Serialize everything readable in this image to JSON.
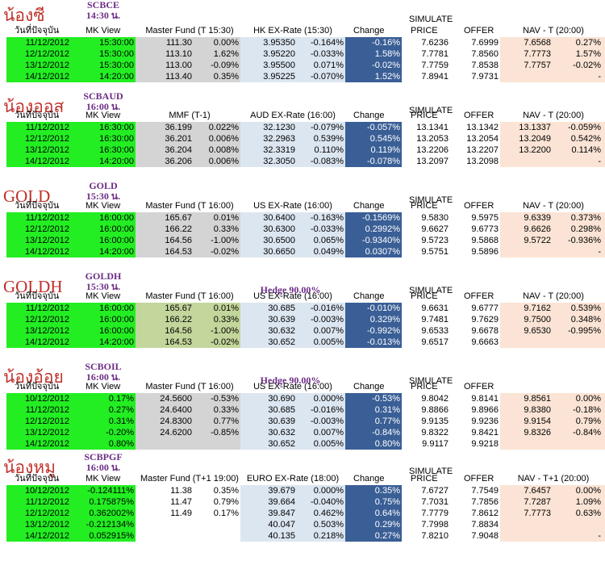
{
  "header_labels": {
    "date": "วันที่ปัจจุบัน",
    "mk": "MK View",
    "change": "Change",
    "price": "PRICE",
    "offer": "OFFER",
    "simulate": "SIMULATE"
  },
  "colors": {
    "green": "#22ee22",
    "grey": "#d4d4d4",
    "olive": "#c3d69b",
    "light_blue": "#dce6f1",
    "navy": "#3a5f96",
    "peach": "#fbe4d5",
    "nickname": "#c0302a",
    "code": "#6c2c86"
  },
  "sections": [
    {
      "nickname": "น้องซี",
      "code": "SCBCE",
      "time": "14:30 น.",
      "hedge": "",
      "master_header": "Master Fund (T 15:30)",
      "fx_header": "HK EX-Rate (15:30)",
      "nav_header": "NAV - T (20:00)",
      "master_bg": "#d4d4d4",
      "rows": [
        [
          "11/12/2012",
          "15:30:00",
          "111.30",
          "0.00%",
          "3.95350",
          "-0.164%",
          "-0.16%",
          "7.6236",
          "7.6999",
          "7.6568",
          "0.27%"
        ],
        [
          "12/12/2012",
          "15:30:00",
          "113.10",
          "1.62%",
          "3.95220",
          "-0.033%",
          "1.58%",
          "7.7781",
          "7.8560",
          "7.7773",
          "1.57%"
        ],
        [
          "13/12/2012",
          "15:30:00",
          "113.00",
          "-0.09%",
          "3.95500",
          "0.071%",
          "-0.02%",
          "7.7759",
          "7.8538",
          "7.7757",
          "-0.02%"
        ],
        [
          "14/12/2012",
          "14:20:00",
          "113.40",
          "0.35%",
          "3.95225",
          "-0.070%",
          "1.52%",
          "7.8941",
          "7.9731",
          "",
          "-"
        ]
      ]
    },
    {
      "nickname": "น้องออส",
      "code": "SCBAUD",
      "time": "16:00 น.",
      "hedge": "",
      "master_header": "MMF (T-1)",
      "fx_header": "AUD EX-Rate (16:00)",
      "nav_header": "NAV - T (20:00)",
      "master_bg": "#d4d4d4",
      "rows": [
        [
          "11/12/2012",
          "16:30:00",
          "36.199",
          "0.022%",
          "32.1230",
          "-0.079%",
          "-0.057%",
          "13.1341",
          "13.1342",
          "13.1337",
          "-0.059%"
        ],
        [
          "12/12/2012",
          "16:30:00",
          "36.201",
          "0.006%",
          "32.2963",
          "0.539%",
          "0.545%",
          "13.2053",
          "13.2054",
          "13.2049",
          "0.542%"
        ],
        [
          "13/12/2012",
          "16:30:00",
          "36.204",
          "0.008%",
          "32.3319",
          "0.110%",
          "0.119%",
          "13.2206",
          "13.2207",
          "13.2200",
          "0.114%"
        ],
        [
          "14/12/2012",
          "14:20:00",
          "36.206",
          "0.006%",
          "32.3050",
          "-0.083%",
          "-0.078%",
          "13.2097",
          "13.2098",
          "",
          "-"
        ]
      ]
    },
    {
      "nickname": "GOLD",
      "code": "GOLD",
      "time": "15:30 น.",
      "hedge": "",
      "master_header": "Master Fund (T 16:00)",
      "fx_header": "US EX-Rate (16:00)",
      "nav_header": "NAV - T (20:00)",
      "master_bg": "#d4d4d4",
      "rows": [
        [
          "11/12/2012",
          "16:00:00",
          "165.67",
          "0.01%",
          "30.6400",
          "-0.163%",
          "-0.1569%",
          "9.5830",
          "9.5975",
          "9.6339",
          "0.373%"
        ],
        [
          "12/12/2012",
          "16:00:00",
          "166.22",
          "0.33%",
          "30.6300",
          "-0.033%",
          "0.2992%",
          "9.6627",
          "9.6773",
          "9.6626",
          "0.298%"
        ],
        [
          "13/12/2012",
          "16:00:00",
          "164.56",
          "-1.00%",
          "30.6500",
          "0.065%",
          "-0.9340%",
          "9.5723",
          "9.5868",
          "9.5722",
          "-0.936%"
        ],
        [
          "14/12/2012",
          "14:20:00",
          "164.53",
          "-0.02%",
          "30.6650",
          "0.049%",
          "0.0307%",
          "9.5751",
          "9.5896",
          "",
          "-"
        ]
      ]
    },
    {
      "nickname": "GOLDH",
      "code": "GOLDH",
      "time": "15:30 น.",
      "hedge": "Hedge 90.00%",
      "master_header": "Master Fund (T 16:00)",
      "fx_header": "US EX-Rate (16:00)",
      "nav_header": "NAV - T (20:00)",
      "master_bg": "#c3d69b",
      "rows": [
        [
          "11/12/2012",
          "16:00:00",
          "165.67",
          "0.01%",
          "30.685",
          "-0.016%",
          "-0.010%",
          "9.6631",
          "9.6777",
          "9.7162",
          "0.539%"
        ],
        [
          "12/12/2012",
          "16:00:00",
          "166.22",
          "0.33%",
          "30.639",
          "-0.003%",
          "0.329%",
          "9.7481",
          "9.7629",
          "9.7500",
          "0.348%"
        ],
        [
          "13/12/2012",
          "16:00:00",
          "164.56",
          "-1.00%",
          "30.632",
          "0.007%",
          "-0.992%",
          "9.6533",
          "9.6678",
          "9.6530",
          "-0.995%"
        ],
        [
          "14/12/2012",
          "14:20:00",
          "164.53",
          "-0.02%",
          "30.652",
          "0.005%",
          "-0.013%",
          "9.6517",
          "9.6663",
          "",
          ""
        ]
      ]
    },
    {
      "nickname": "น้องอ้อย",
      "code": "SCBOIL",
      "time": "16:00 น.",
      "hedge": "Hedge 90.00%",
      "master_header": "Master Fund (T 16:00)",
      "fx_header": "US EX-Rate (16:00)",
      "nav_header": "",
      "master_bg": "#d4d4d4",
      "rows": [
        [
          "10/12/2012",
          "0.17%",
          "24.5600",
          "-0.53%",
          "30.690",
          "0.000%",
          "-0.53%",
          "9.8042",
          "9.8141",
          "9.8561",
          "0.00%"
        ],
        [
          "11/12/2012",
          "0.27%",
          "24.6400",
          "0.33%",
          "30.685",
          "-0.016%",
          "0.31%",
          "9.8866",
          "9.8966",
          "9.8380",
          "-0.18%"
        ],
        [
          "12/12/2012",
          "0.31%",
          "24.8300",
          "0.77%",
          "30.639",
          "-0.003%",
          "0.77%",
          "9.9135",
          "9.9236",
          "9.9154",
          "0.79%"
        ],
        [
          "13/12/2012",
          "-0.20%",
          "24.6200",
          "-0.85%",
          "30.632",
          "0.007%",
          "-0.84%",
          "9.8322",
          "9.8421",
          "9.8326",
          "-0.84%"
        ],
        [
          "14/12/2012",
          "0.80%",
          "",
          "",
          "30.652",
          "0.005%",
          "0.80%",
          "9.9117",
          "9.9218",
          "",
          ""
        ]
      ]
    },
    {
      "nickname": "น้องหมู",
      "code": "SCBPGF",
      "time": "16:00 น.",
      "hedge": "",
      "master_header": "Master Fund (T+1 19:00)",
      "fx_header": "EURO EX-Rate (18:00)",
      "nav_header": "NAV - T+1 (20:00)",
      "master_bg": "#ffffff",
      "rows": [
        [
          "10/12/2012",
          "-0.124111%",
          "11.38",
          "0.35%",
          "39.679",
          "0.000%",
          "0.35%",
          "7.6727",
          "7.7549",
          "7.6457",
          "0.00%"
        ],
        [
          "11/12/2012",
          "0.175875%",
          "11.47",
          "0.79%",
          "39.664",
          "-0.040%",
          "0.75%",
          "7.7031",
          "7.7856",
          "7.7287",
          "1.09%"
        ],
        [
          "12/12/2012",
          "0.362002%",
          "11.49",
          "0.17%",
          "39.847",
          "0.462%",
          "0.64%",
          "7.7779",
          "7.8612",
          "7.7773",
          "0.63%"
        ],
        [
          "13/12/2012",
          "-0.212134%",
          "",
          "",
          "40.047",
          "0.503%",
          "0.29%",
          "7.7998",
          "7.8834",
          "",
          ""
        ],
        [
          "14/12/2012",
          "0.052915%",
          "",
          "",
          "40.135",
          "0.218%",
          "0.27%",
          "7.8210",
          "7.9048",
          "",
          "-"
        ]
      ]
    }
  ]
}
